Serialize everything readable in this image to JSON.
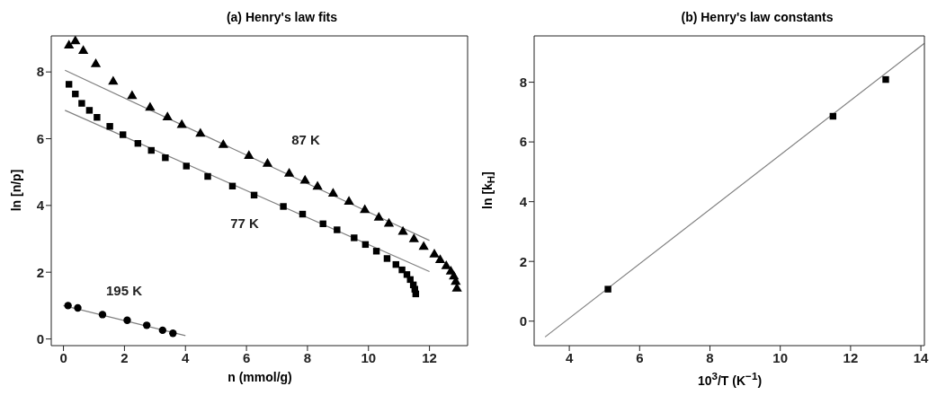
{
  "chart_data": [
    {
      "type": "scatter",
      "title": "(a) Henry's law fits",
      "xlabel": "n (mmol/g)",
      "ylabel": "ln [n/p]",
      "xlim": [
        -0.4,
        13.25
      ],
      "ylim": [
        -0.2,
        9.08
      ],
      "xticks": [
        0,
        2,
        4,
        6,
        8,
        10,
        12
      ],
      "yticks": [
        0,
        2,
        4,
        6,
        8
      ],
      "series": [
        {
          "color": "#000000",
          "marker": "triangle",
          "x": [
            0.18,
            0.39,
            0.65,
            1.06,
            1.63,
            2.25,
            2.84,
            3.41,
            3.88,
            4.49,
            5.24,
            6.08,
            6.69,
            7.4,
            7.92,
            8.33,
            8.84,
            9.36,
            9.88,
            10.34,
            10.67,
            11.13,
            11.49,
            11.81,
            12.16,
            12.35,
            12.55,
            12.7,
            12.8,
            12.86,
            12.9
          ],
          "values": [
            8.79,
            8.92,
            8.63,
            8.23,
            7.71,
            7.28,
            6.93,
            6.64,
            6.41,
            6.15,
            5.81,
            5.48,
            5.25,
            4.95,
            4.74,
            4.56,
            4.35,
            4.11,
            3.86,
            3.63,
            3.45,
            3.21,
            2.99,
            2.76,
            2.53,
            2.36,
            2.18,
            2.02,
            1.87,
            1.71,
            1.51
          ]
        },
        {
          "color": "#000000",
          "marker": "square",
          "x": [
            0.18,
            0.39,
            0.6,
            0.85,
            1.1,
            1.52,
            1.95,
            2.44,
            2.88,
            3.34,
            4.03,
            4.73,
            5.54,
            6.25,
            7.21,
            7.84,
            8.51,
            8.97,
            9.53,
            9.9,
            10.26,
            10.61,
            10.9,
            11.1,
            11.26,
            11.37,
            11.47,
            11.52,
            11.55
          ],
          "values": [
            7.63,
            7.34,
            7.06,
            6.85,
            6.64,
            6.37,
            6.12,
            5.86,
            5.65,
            5.43,
            5.18,
            4.87,
            4.58,
            4.31,
            3.97,
            3.74,
            3.45,
            3.27,
            3.03,
            2.83,
            2.63,
            2.41,
            2.23,
            2.07,
            1.93,
            1.78,
            1.62,
            1.49,
            1.35
          ]
        },
        {
          "color": "#000000",
          "marker": "circle",
          "x": [
            0.15,
            0.47,
            1.28,
            2.09,
            2.73,
            3.25,
            3.59
          ],
          "values": [
            1.0,
            0.93,
            0.73,
            0.56,
            0.41,
            0.26,
            0.17
          ]
        },
        {
          "type": "line",
          "color": "#808080",
          "x": [
            0.05,
            12
          ],
          "values": [
            8.05,
            2.95
          ]
        },
        {
          "type": "line",
          "color": "#808080",
          "x": [
            0.05,
            12
          ],
          "values": [
            6.85,
            2.02
          ]
        },
        {
          "type": "line",
          "color": "#808080",
          "x": [
            0.0,
            4.0
          ],
          "values": [
            1.0,
            0.1
          ]
        }
      ],
      "annotations": [
        "87 K",
        "77 K",
        "195 K"
      ]
    },
    {
      "type": "scatter",
      "title": "(b) Henry's law constants",
      "xlabel": "10$^{3}$/T (K$^{−1}$)",
      "ylabel": "ln [k$_{H}$]",
      "xlim": [
        3.0,
        14.1
      ],
      "ylim": [
        -0.82,
        9.55
      ],
      "xticks": [
        4,
        6,
        8,
        10,
        12,
        14
      ],
      "yticks": [
        0,
        2,
        4,
        6,
        8
      ],
      "series": [
        {
          "color": "#000000",
          "marker": "square",
          "x": [
            5.1,
            11.5,
            13.0
          ],
          "values": [
            1.07,
            6.86,
            8.09
          ]
        },
        {
          "type": "line",
          "color": "#808080",
          "x": [
            3.31,
            14.1
          ],
          "values": [
            -0.53,
            9.3
          ]
        }
      ]
    }
  ]
}
